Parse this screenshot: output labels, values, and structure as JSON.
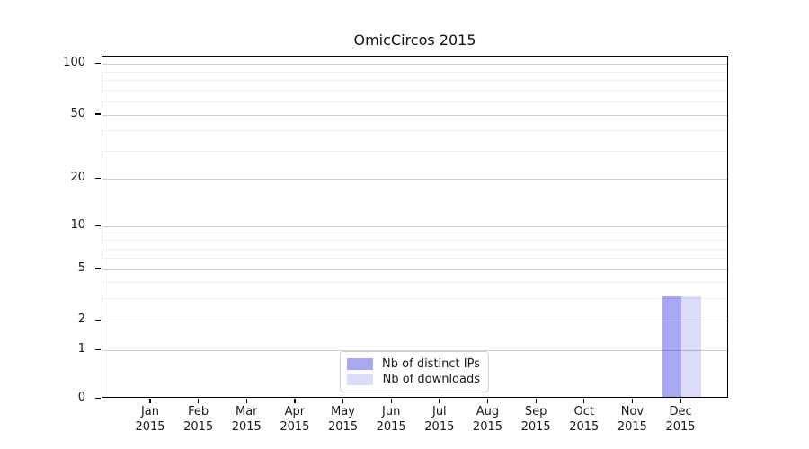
{
  "title": "OmicCircos 2015",
  "chart_data": {
    "type": "bar",
    "title": "OmicCircos 2015",
    "categories": [
      "Jan 2015",
      "Feb 2015",
      "Mar 2015",
      "Apr 2015",
      "May 2015",
      "Jun 2015",
      "Jul 2015",
      "Aug 2015",
      "Sep 2015",
      "Oct 2015",
      "Nov 2015",
      "Dec 2015"
    ],
    "series": [
      {
        "name": "Nb of distinct IPs",
        "color": "#a8a8f2",
        "values": [
          0,
          0,
          0,
          0,
          0,
          0,
          0,
          0,
          0,
          0,
          0,
          3
        ]
      },
      {
        "name": "Nb of downloads",
        "color": "#dcdcf8",
        "values": [
          0,
          0,
          0,
          0,
          0,
          0,
          0,
          0,
          0,
          0,
          0,
          3
        ]
      }
    ],
    "yaxis": {
      "tick_labels": [
        0,
        1,
        2,
        5,
        10,
        20,
        50,
        100
      ],
      "minor_ticks": [
        3,
        4,
        6,
        7,
        8,
        9,
        30,
        40,
        60,
        70,
        80,
        90
      ],
      "scale": "log-like",
      "range": [
        0,
        100
      ]
    },
    "xaxis": {
      "year_line": "2015",
      "months": [
        "Jan",
        "Feb",
        "Mar",
        "Apr",
        "May",
        "Jun",
        "Jul",
        "Aug",
        "Sep",
        "Oct",
        "Nov",
        "Dec"
      ]
    },
    "legend": {
      "position": "lower center inside plot"
    },
    "grid": "horizontal major and minor, drawn over bars"
  }
}
